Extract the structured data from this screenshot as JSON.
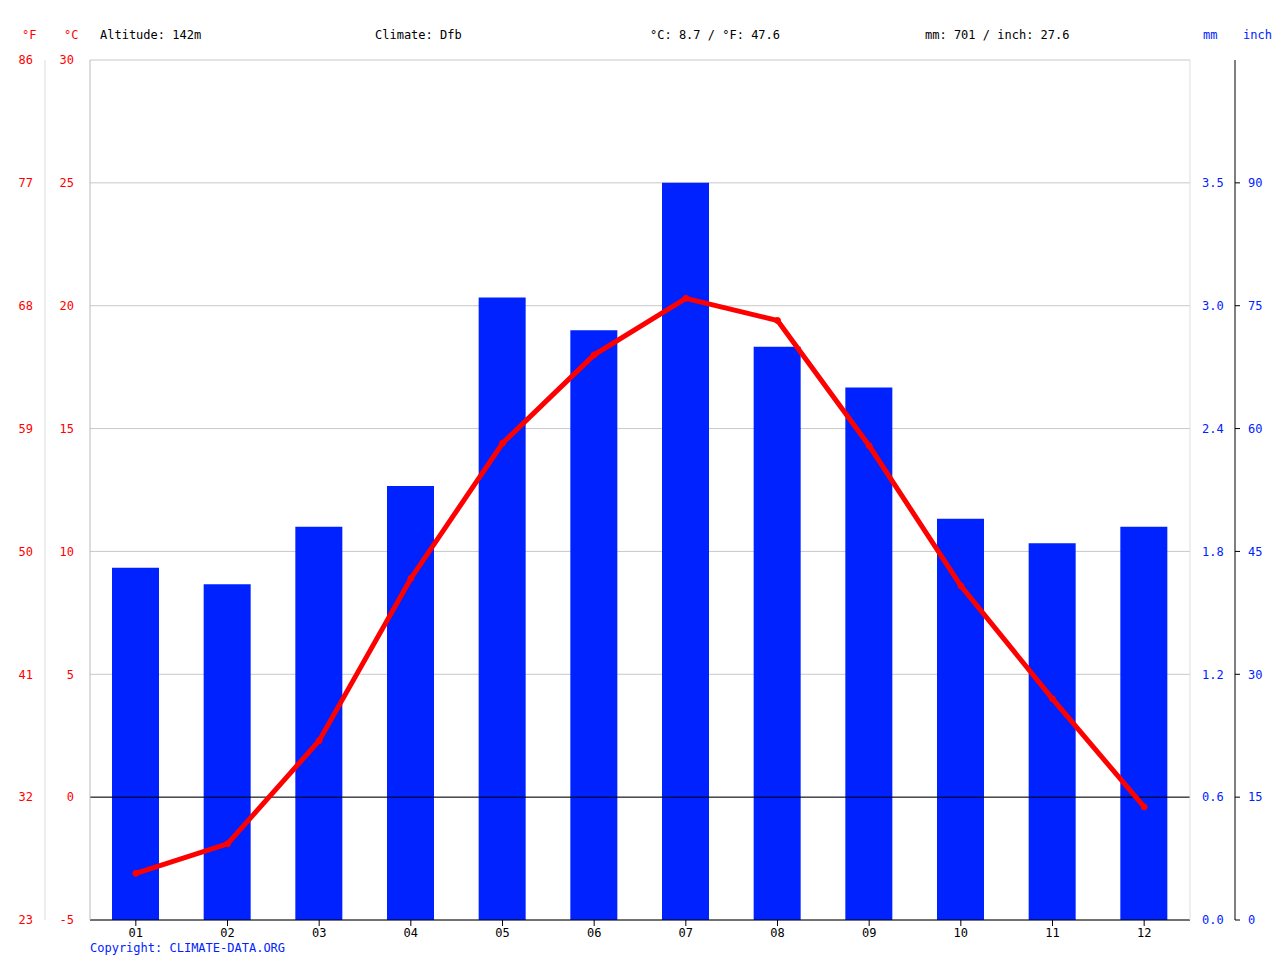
{
  "chart_data": {
    "type": "bar",
    "annotations": [
      "Altitude: 142m",
      "Climate: Dfb",
      "°C: 8.7 / °F: 47.6",
      "mm: 701 / inch: 27.6"
    ],
    "footnote": "Copyright: CLIMATE-DATA.ORG",
    "categories": [
      "01",
      "02",
      "03",
      "04",
      "05",
      "06",
      "07",
      "08",
      "09",
      "10",
      "11",
      "12"
    ],
    "series": [
      {
        "name": "mm",
        "type": "bar",
        "axis": "y2",
        "color": "#0022ff",
        "values": [
          43,
          41,
          48,
          53,
          76,
          72,
          90,
          70,
          65,
          49,
          46,
          48
        ]
      },
      {
        "name": "°C",
        "type": "line",
        "color": "#ff0000",
        "marker": "circle",
        "values": [
          -3.1,
          -1.9,
          2.3,
          8.9,
          14.4,
          18.0,
          20.3,
          19.4,
          14.3,
          8.6,
          4.0,
          -0.4
        ]
      }
    ],
    "ylim": [
      -5,
      30
    ],
    "yticks": [
      -5,
      0,
      5,
      10,
      15,
      20,
      25,
      30
    ],
    "y2lim": [
      0,
      105
    ],
    "y2ticks": [
      0,
      15,
      30,
      45,
      60,
      75,
      90
    ],
    "y3_label": "°F",
    "y3lim": [
      23,
      86
    ],
    "y3ticks": [
      23,
      32,
      41,
      50,
      59,
      68,
      77,
      86
    ],
    "y4_label": "inch",
    "y4lim": [
      0,
      4.13
    ],
    "y4ticks": [
      {
        "value": 0,
        "label": "0.0"
      },
      {
        "value": 0.59,
        "label": "0.6"
      },
      {
        "value": 1.18,
        "label": "1.2"
      },
      {
        "value": 1.77,
        "label": "1.8"
      },
      {
        "value": 2.36,
        "label": "2.4"
      },
      {
        "value": 2.95,
        "label": "3.0"
      },
      {
        "value": 3.54,
        "label": "3.5"
      }
    ],
    "grid": true
  }
}
